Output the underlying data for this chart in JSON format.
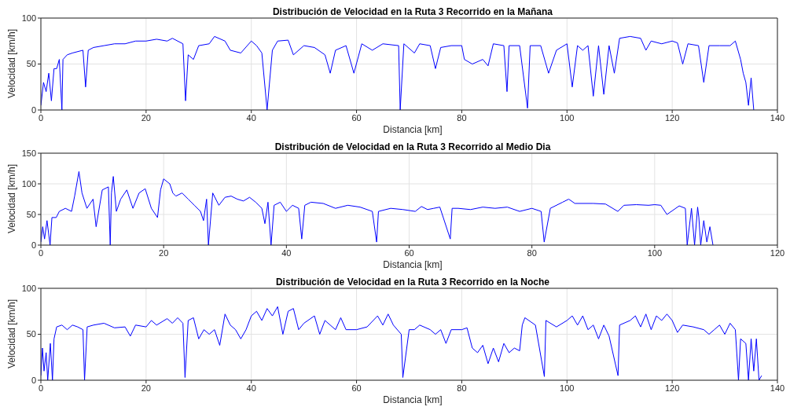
{
  "chart_data": [
    {
      "type": "line",
      "title": "Distribución de Velocidad en la Ruta 3 Recorrido en la Mañana",
      "xlabel": "Distancia [km]",
      "ylabel": "Velocidad [km/h]",
      "color": "#0000ff",
      "grid": true,
      "xlim": [
        0,
        140
      ],
      "xticks": [
        0,
        20,
        40,
        60,
        80,
        100,
        120,
        140
      ],
      "ylim": [
        0,
        100
      ],
      "yticks": [
        0,
        50,
        100
      ],
      "x": [
        0,
        0.5,
        1,
        1.5,
        2,
        2.5,
        3,
        3.5,
        4,
        4.2,
        5,
        6,
        8,
        8.5,
        9,
        10,
        12,
        14,
        16,
        18,
        20,
        22,
        24,
        25,
        27,
        27.5,
        28,
        29,
        30,
        32,
        33,
        35,
        36,
        38,
        40,
        41,
        42,
        43,
        44,
        45,
        47,
        48,
        50,
        52,
        54,
        55,
        56,
        58,
        59.5,
        61,
        63,
        65,
        68,
        68.3,
        69,
        71,
        72,
        74,
        75,
        76,
        78,
        80,
        80.5,
        82,
        84,
        85,
        86,
        88,
        88.6,
        89,
        91,
        92.5,
        93,
        95,
        96.5,
        98,
        100,
        101,
        102,
        103,
        104,
        105,
        106,
        107,
        108,
        109,
        110,
        112,
        114,
        115,
        116,
        118,
        120,
        121,
        122,
        123,
        125,
        126,
        127,
        129,
        131,
        132,
        133,
        133.5,
        134,
        134.5,
        135,
        135.5
      ],
      "values": [
        5,
        30,
        20,
        40,
        10,
        45,
        45,
        55,
        0,
        55,
        60,
        62,
        65,
        25,
        65,
        68,
        70,
        72,
        72,
        75,
        75,
        77,
        75,
        78,
        72,
        10,
        60,
        55,
        70,
        72,
        80,
        75,
        65,
        62,
        75,
        70,
        62,
        0,
        65,
        75,
        76,
        60,
        70,
        68,
        60,
        40,
        65,
        70,
        40,
        72,
        65,
        72,
        70,
        0,
        72,
        62,
        72,
        70,
        45,
        68,
        70,
        70,
        55,
        50,
        55,
        48,
        72,
        70,
        20,
        70,
        70,
        2,
        70,
        70,
        40,
        65,
        72,
        25,
        70,
        65,
        70,
        15,
        70,
        17,
        70,
        40,
        78,
        80,
        78,
        65,
        75,
        72,
        75,
        73,
        50,
        72,
        70,
        30,
        70,
        70,
        70,
        75,
        55,
        40,
        30,
        5,
        35,
        0
      ]
    },
    {
      "type": "line",
      "title": "Distribución de Velocidad en la Ruta 3 Recorrido al Medio Dia",
      "xlabel": "Distancia [km]",
      "ylabel": "Velocidad [km/h]",
      "color": "#0000ff",
      "grid": true,
      "xlim": [
        0,
        120
      ],
      "xticks": [
        0,
        20,
        40,
        60,
        80,
        100,
        120
      ],
      "ylim": [
        0,
        150
      ],
      "yticks": [
        0,
        50,
        100,
        150
      ],
      "x": [
        0,
        0.3,
        0.6,
        1,
        1.5,
        1.8,
        2.5,
        3,
        4,
        5,
        5.5,
        6.2,
        6.7,
        7.5,
        8.5,
        9,
        10,
        11,
        11.3,
        11.5,
        11.8,
        12.3,
        13,
        14,
        15,
        16,
        17,
        18,
        19,
        19.5,
        20,
        21,
        21.5,
        22,
        23,
        24,
        25,
        26,
        26.5,
        27,
        27.3,
        28,
        29,
        30,
        31,
        32,
        33,
        34,
        35,
        36,
        36.5,
        37,
        37.5,
        38,
        39,
        40,
        41,
        42,
        42.5,
        43,
        44,
        46,
        48,
        50,
        52,
        54,
        54.7,
        55,
        57,
        59,
        61,
        62,
        63,
        64,
        65,
        66.7,
        67,
        68,
        70,
        72,
        74,
        76,
        78,
        80,
        81.5,
        82,
        83,
        85,
        86,
        87,
        90,
        92,
        94,
        95,
        97,
        99,
        100,
        101,
        102,
        104,
        105,
        105.3,
        106,
        106.5,
        107,
        107.2,
        107.5,
        108,
        108.5,
        109,
        109.5
      ],
      "values": [
        5,
        30,
        10,
        40,
        0,
        45,
        45,
        55,
        60,
        55,
        80,
        120,
        85,
        60,
        75,
        30,
        90,
        95,
        0,
        85,
        112,
        55,
        75,
        90,
        60,
        85,
        92,
        60,
        45,
        90,
        108,
        100,
        85,
        80,
        85,
        75,
        65,
        55,
        40,
        75,
        0,
        85,
        65,
        78,
        80,
        75,
        72,
        78,
        70,
        60,
        35,
        70,
        0,
        65,
        70,
        55,
        65,
        60,
        10,
        65,
        70,
        68,
        60,
        65,
        62,
        55,
        5,
        55,
        60,
        58,
        55,
        63,
        58,
        60,
        62,
        10,
        60,
        60,
        58,
        62,
        60,
        62,
        55,
        60,
        55,
        5,
        60,
        70,
        75,
        68,
        68,
        67,
        55,
        65,
        66,
        65,
        66,
        65,
        50,
        64,
        60,
        0,
        60,
        0,
        62,
        45,
        0,
        40,
        5,
        30,
        0
      ]
    },
    {
      "type": "line",
      "title": "Distribución de Velocidad en la Ruta 3 Recorrido en la Noche",
      "xlabel": "Distancia [km]",
      "ylabel": "Velocidad [km/h]",
      "color": "#0000ff",
      "grid": true,
      "xlim": [
        0,
        140
      ],
      "xticks": [
        0,
        20,
        40,
        60,
        80,
        100,
        120,
        140
      ],
      "ylim": [
        0,
        100
      ],
      "yticks": [
        0,
        50,
        100
      ],
      "x": [
        0,
        0.3,
        0.6,
        1,
        1.3,
        1.8,
        2.2,
        2.5,
        3,
        4,
        5,
        6,
        7,
        8,
        8.3,
        8.8,
        10,
        12,
        14,
        16,
        17,
        18,
        20,
        21,
        22,
        24,
        25,
        26,
        27,
        27.4,
        28,
        29,
        30,
        31,
        32,
        33,
        34,
        35,
        36,
        37,
        38,
        39,
        40,
        41,
        42,
        43,
        44,
        45,
        46,
        47,
        48,
        49,
        50,
        52,
        53,
        54,
        55,
        56,
        57,
        58,
        60,
        62,
        64,
        65,
        66,
        67,
        68.5,
        68.8,
        70,
        71,
        72,
        74,
        75,
        76,
        77,
        78,
        80,
        81,
        82,
        83,
        84,
        85,
        86,
        87,
        88,
        89,
        90,
        91,
        91.5,
        92,
        94,
        95.7,
        96,
        98,
        100,
        101,
        102,
        103,
        104,
        105,
        106,
        107,
        108,
        109.7,
        110,
        112,
        113,
        114,
        115,
        116,
        117,
        118,
        119,
        120,
        121,
        122,
        124,
        126,
        127,
        128,
        129,
        130,
        131,
        132,
        132.6,
        133,
        134,
        134.5,
        135,
        135.5,
        136,
        136.5,
        137
      ],
      "values": [
        5,
        35,
        10,
        30,
        0,
        40,
        0,
        45,
        58,
        60,
        55,
        60,
        58,
        55,
        0,
        58,
        60,
        62,
        57,
        58,
        48,
        60,
        58,
        65,
        60,
        67,
        62,
        68,
        62,
        3,
        65,
        68,
        45,
        55,
        50,
        55,
        38,
        72,
        60,
        55,
        45,
        55,
        70,
        75,
        65,
        78,
        70,
        80,
        50,
        75,
        78,
        55,
        62,
        70,
        50,
        65,
        60,
        55,
        68,
        55,
        55,
        58,
        70,
        60,
        72,
        60,
        50,
        3,
        55,
        55,
        60,
        55,
        50,
        55,
        40,
        55,
        55,
        57,
        35,
        30,
        38,
        18,
        35,
        20,
        40,
        30,
        35,
        32,
        60,
        68,
        60,
        4,
        65,
        58,
        65,
        70,
        60,
        70,
        55,
        60,
        45,
        60,
        48,
        5,
        60,
        65,
        70,
        58,
        72,
        55,
        70,
        65,
        72,
        65,
        52,
        60,
        58,
        55,
        50,
        55,
        60,
        50,
        62,
        55,
        0,
        45,
        40,
        0,
        45,
        10,
        45,
        0,
        5
      ]
    }
  ]
}
